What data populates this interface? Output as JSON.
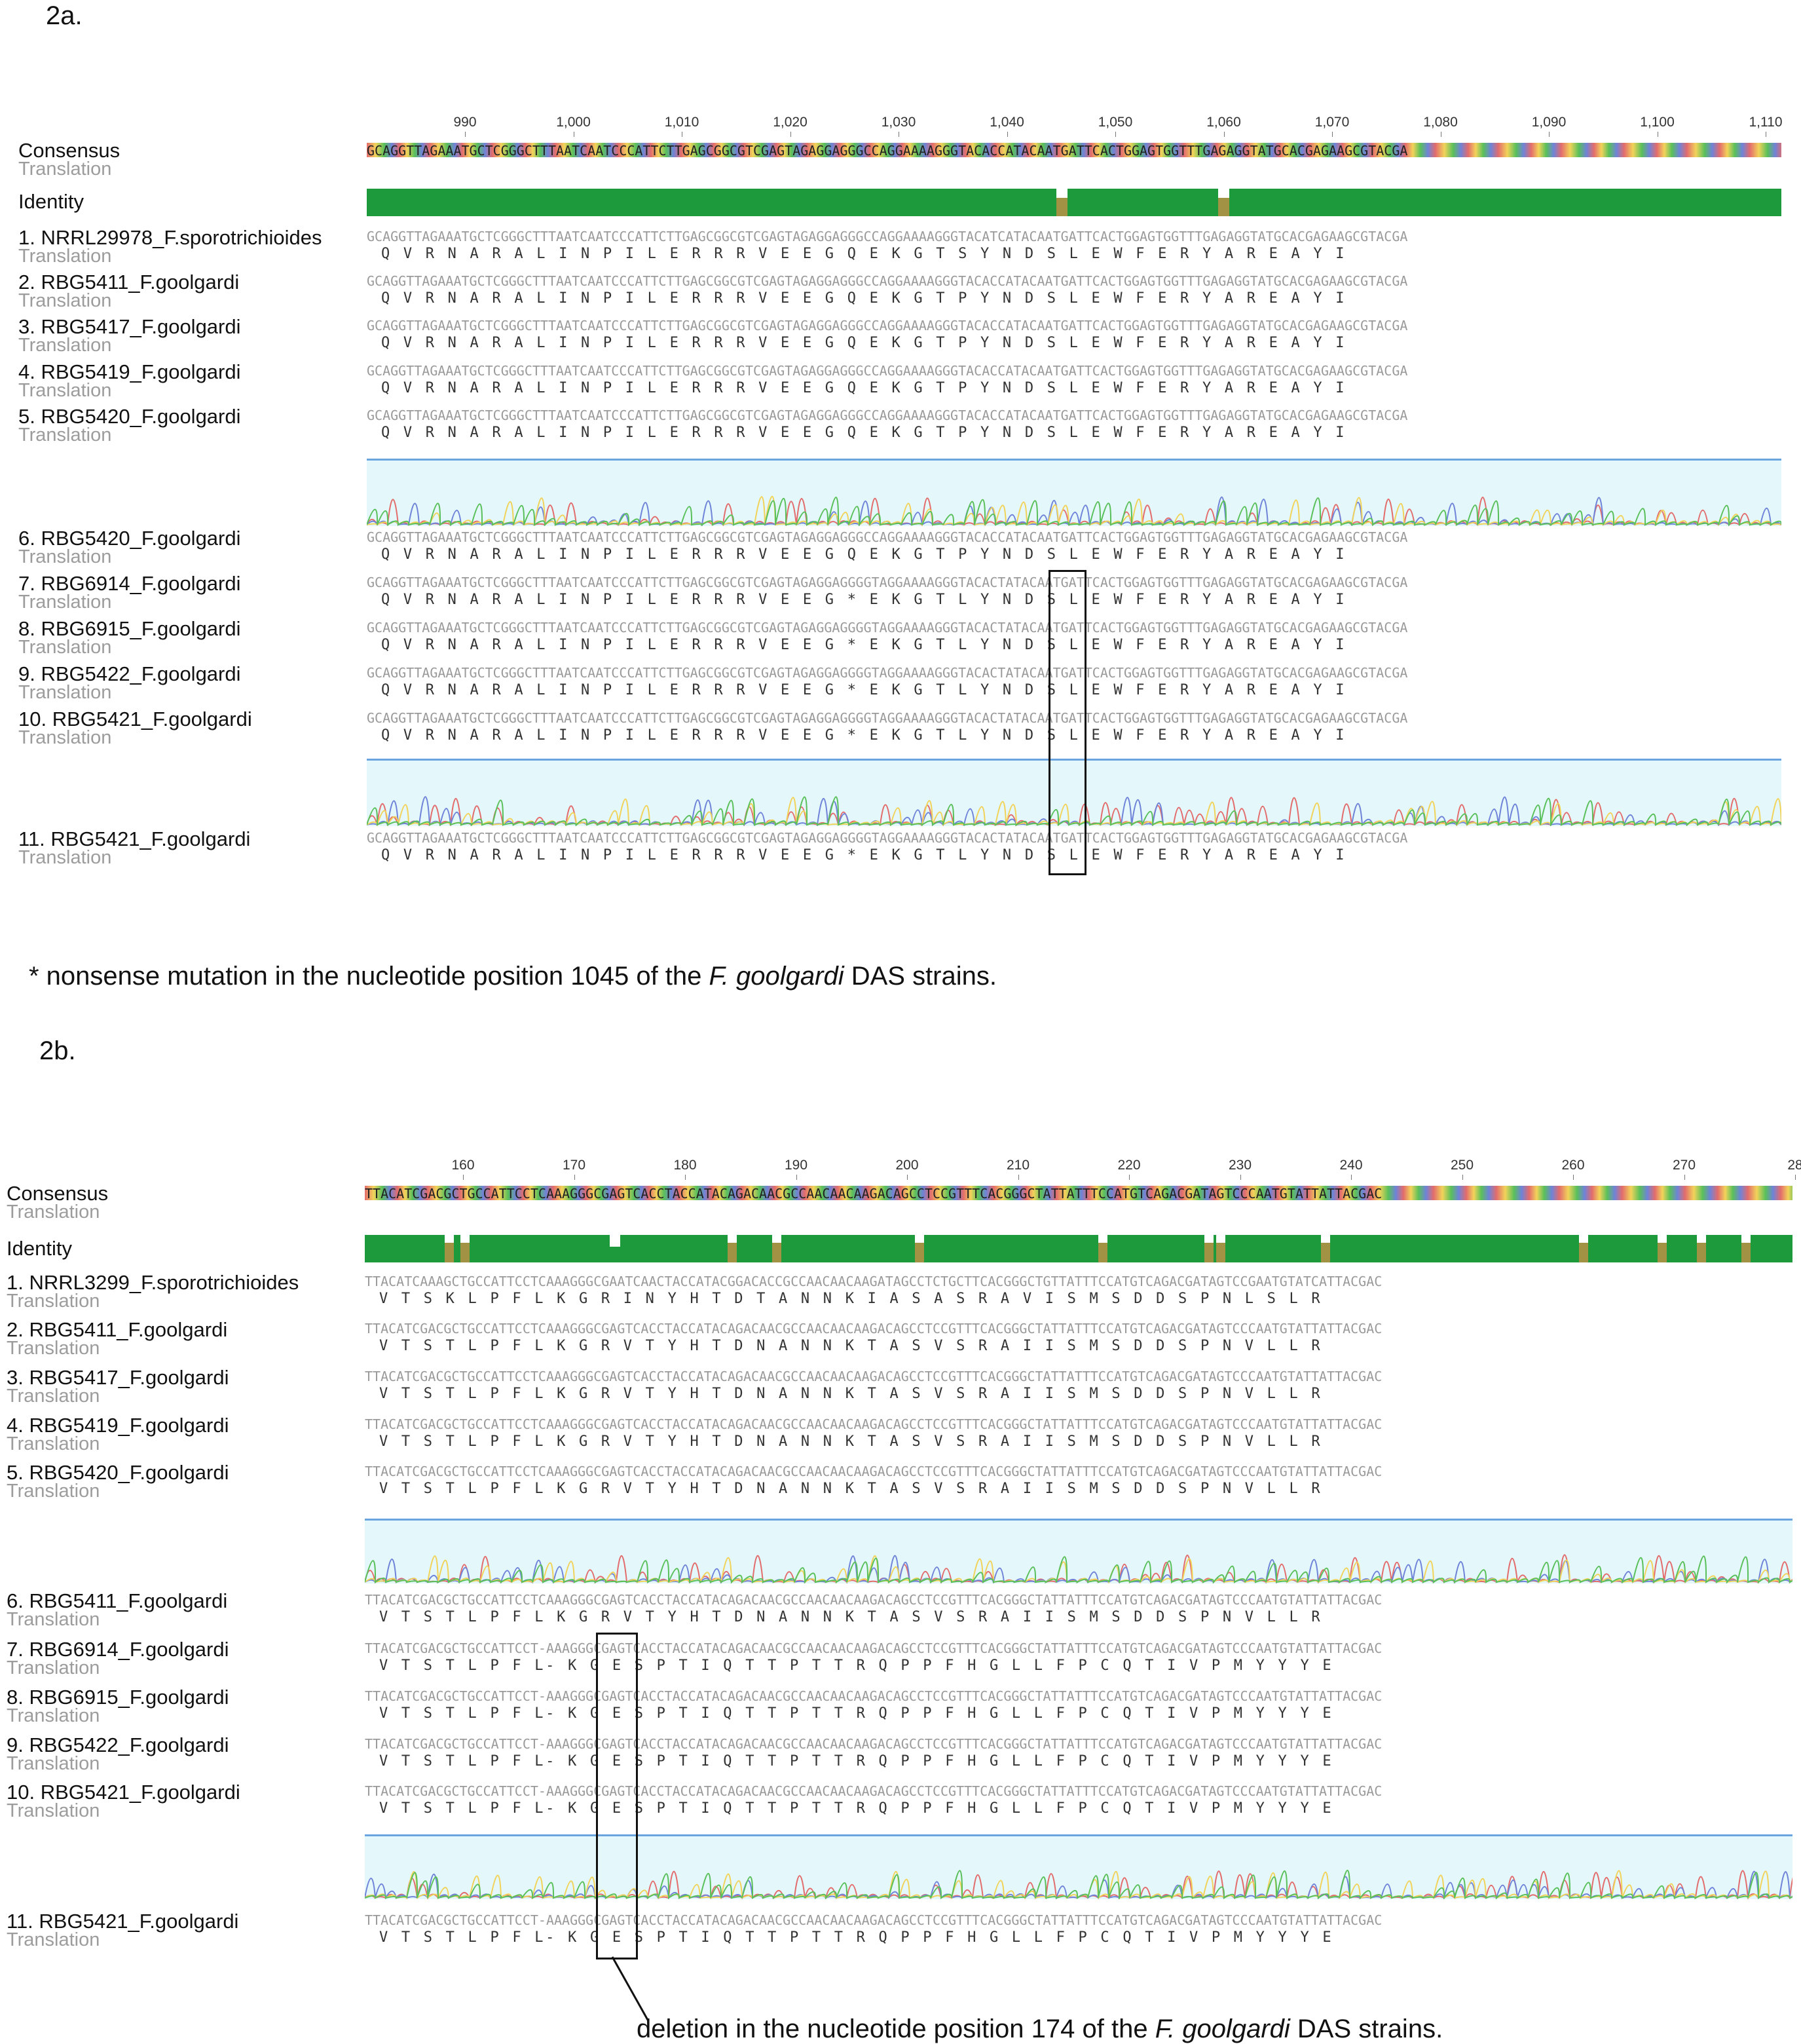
{
  "panels": {
    "a": {
      "label": "2a.",
      "consensus_label": "Consensus",
      "translation_label": "Translation",
      "identity_label": "Identity",
      "ruler_ticks": [
        "990",
        "1,000",
        "1,010",
        "1,020",
        "1,030",
        "1,040",
        "1,050",
        "1,060",
        "1,070",
        "1,080",
        "1,090",
        "1,100",
        "1,110"
      ],
      "consensus_seq": "GCAGGTTAGAAATGCTCGGGCTTTAATCAATCCCATTCTTGAGCGGCGTCGAGTAGAGGAGGGCCAGGAAAAGGGTACACCATACAATGATTCACTGGAGTGGTTTGAGAGGTATGCACGAGAAGCGTACGA",
      "rows": [
        {
          "name": "1. NRRL29978_F.sporotrichioides",
          "seq": "GCAGGTTAGAAATGCTCGGGCTTTAATCAATCCCATTCTTGAGCGGCGTCGAGTAGAGGAGGGCCAGGAAAAGGGTACATCATACAATGATTCACTGGAGTGGTTTGAGAGGTATGCACGAGAAGCGTACGA",
          "aa": "Q V R N A R A L I N P I L E R R R V E E G Q E K G T S Y N D S L E W F E R Y A R E A Y I"
        },
        {
          "name": "2. RBG5411_F.goolgardi",
          "seq": "GCAGGTTAGAAATGCTCGGGCTTTAATCAATCCCATTCTTGAGCGGCGTCGAGTAGAGGAGGGCCAGGAAAAGGGTACACCATACAATGATTCACTGGAGTGGTTTGAGAGGTATGCACGAGAAGCGTACGA",
          "aa": "Q V R N A R A L I N P I L E R R R V E E G Q E K G T P Y N D S L E W F E R Y A R E A Y I"
        },
        {
          "name": "3. RBG5417_F.goolgardi",
          "seq": "GCAGGTTAGAAATGCTCGGGCTTTAATCAATCCCATTCTTGAGCGGCGTCGAGTAGAGGAGGGCCAGGAAAAGGGTACACCATACAATGATTCACTGGAGTGGTTTGAGAGGTATGCACGAGAAGCGTACGA",
          "aa": "Q V R N A R A L I N P I L E R R R V E E G Q E K G T P Y N D S L E W F E R Y A R E A Y I"
        },
        {
          "name": "4. RBG5419_F.goolgardi",
          "seq": "GCAGGTTAGAAATGCTCGGGCTTTAATCAATCCCATTCTTGAGCGGCGTCGAGTAGAGGAGGGCCAGGAAAAGGGTACACCATACAATGATTCACTGGAGTGGTTTGAGAGGTATGCACGAGAAGCGTACGA",
          "aa": "Q V R N A R A L I N P I L E R R R V E E G Q E K G T P Y N D S L E W F E R Y A R E A Y I"
        },
        {
          "name": "5. RBG5420_F.goolgardi",
          "seq": "GCAGGTTAGAAATGCTCGGGCTTTAATCAATCCCATTCTTGAGCGGCGTCGAGTAGAGGAGGGCCAGGAAAAGGGTACACCATACAATGATTCACTGGAGTGGTTTGAGAGGTATGCACGAGAAGCGTACGA",
          "aa": "Q V R N A R A L I N P I L E R R R V E E G Q E K G T P Y N D S L E W F E R Y A R E A Y I"
        },
        {
          "name": "6. RBG5420_F.goolgardi",
          "seq": "GCAGGTTAGAAATGCTCGGGCTTTAATCAATCCCATTCTTGAGCGGCGTCGAGTAGAGGAGGGCCAGGAAAAGGGTACACCATACAATGATTCACTGGAGTGGTTTGAGAGGTATGCACGAGAAGCGTACGA",
          "aa": "Q V R N A R A L I N P I L E R R R V E E G Q E K G T P Y N D S L E W F E R Y A R E A Y I"
        },
        {
          "name": "7. RBG6914_F.goolgardi",
          "seq": "GCAGGTTAGAAATGCTCGGGCTTTAATCAATCCCATTCTTGAGCGGCGTCGAGTAGAGGAGGGGTAGGAAAAGGGTACACTATACAATGATTCACTGGAGTGGTTTGAGAGGTATGCACGAGAAGCGTACGA",
          "aa": "Q V R N A R A L I N P I L E R R R V E E G * E K G T L Y N D S L E W F E R Y A R E A Y I"
        },
        {
          "name": "8. RBG6915_F.goolgardi",
          "seq": "GCAGGTTAGAAATGCTCGGGCTTTAATCAATCCCATTCTTGAGCGGCGTCGAGTAGAGGAGGGGTAGGAAAAGGGTACACTATACAATGATTCACTGGAGTGGTTTGAGAGGTATGCACGAGAAGCGTACGA",
          "aa": "Q V R N A R A L I N P I L E R R R V E E G * E K G T L Y N D S L E W F E R Y A R E A Y I"
        },
        {
          "name": "9. RBG5422_F.goolgardi",
          "seq": "GCAGGTTAGAAATGCTCGGGCTTTAATCAATCCCATTCTTGAGCGGCGTCGAGTAGAGGAGGGGTAGGAAAAGGGTACACTATACAATGATTCACTGGAGTGGTTTGAGAGGTATGCACGAGAAGCGTACGA",
          "aa": "Q V R N A R A L I N P I L E R R R V E E G * E K G T L Y N D S L E W F E R Y A R E A Y I"
        },
        {
          "name": "10. RBG5421_F.goolgardi",
          "seq": "GCAGGTTAGAAATGCTCGGGCTTTAATCAATCCCATTCTTGAGCGGCGTCGAGTAGAGGAGGGGTAGGAAAAGGGTACACTATACAATGATTCACTGGAGTGGTTTGAGAGGTATGCACGAGAAGCGTACGA",
          "aa": "Q V R N A R A L I N P I L E R R R V E E G * E K G T L Y N D S L E W F E R Y A R E A Y I"
        },
        {
          "name": "11. RBG5421_F.goolgardi",
          "seq": "GCAGGTTAGAAATGCTCGGGCTTTAATCAATCCCATTCTTGAGCGGCGTCGAGTAGAGGAGGGGTAGGAAAAGGGTACACTATACAATGATTCACTGGAGTGGTTTGAGAGGTATGCACGAGAAGCGTACGA",
          "aa": "Q V R N A R A L I N P I L E R R R V E E G * E K G T L Y N D S L E W F E R Y A R E A Y I"
        }
      ],
      "note_prefix": "* nonsense mutation in the nucleotide position 1045 of the ",
      "note_species": "F. goolgardi",
      "note_suffix": " DAS strains."
    },
    "b": {
      "label": "2b.",
      "consensus_label": "Consensus",
      "translation_label": "Translation",
      "identity_label": "Identity",
      "ruler_ticks": [
        "160",
        "170",
        "180",
        "190",
        "200",
        "210",
        "220",
        "230",
        "240",
        "250",
        "260",
        "270",
        "28"
      ],
      "consensus_seq": "TTACATCGACGCTGCCATTCCTCAAAGGGCGAGTCACCTACCATACAGACAACGCCAACAACAAGACAGCCTCCGTTTCACGGGCTATTATTTCCATGTCAGACGATAGTCCCAATGTATTATTACGAC",
      "rows": [
        {
          "name": "1. NRRL3299_F.sporotrichioides",
          "seq": "TTACATCAAAGCTGCCATTCCTCAAAGGGCGAATCAACTACCATACGGACACCGCCAACAACAAGATAGCCTCTGCTTCACGGGCTGTTATTTCCATGTCAGACGATAGTCCGAATGTATCATTACGAC",
          "aa": "V T S K L P F L K G R I N Y H T D T A N N K I A S A S R A V I S M S D D S P N L S L R"
        },
        {
          "name": "2. RBG5411_F.goolgardi",
          "seq": "TTACATCGACGCTGCCATTCCTCAAAGGGCGAGTCACCTACCATACAGACAACGCCAACAACAAGACAGCCTCCGTTTCACGGGCTATTATTTCCATGTCAGACGATAGTCCCAATGTATTATTACGAC",
          "aa": "V T S T L P F L K G R V T Y H T D N A N N K T A S V S R A I I S M S D D S P N V L L R"
        },
        {
          "name": "3. RBG5417_F.goolgardi",
          "seq": "TTACATCGACGCTGCCATTCCTCAAAGGGCGAGTCACCTACCATACAGACAACGCCAACAACAAGACAGCCTCCGTTTCACGGGCTATTATTTCCATGTCAGACGATAGTCCCAATGTATTATTACGAC",
          "aa": "V T S T L P F L K G R V T Y H T D N A N N K T A S V S R A I I S M S D D S P N V L L R"
        },
        {
          "name": "4. RBG5419_F.goolgardi",
          "seq": "TTACATCGACGCTGCCATTCCTCAAAGGGCGAGTCACCTACCATACAGACAACGCCAACAACAAGACAGCCTCCGTTTCACGGGCTATTATTTCCATGTCAGACGATAGTCCCAATGTATTATTACGAC",
          "aa": "V T S T L P F L K G R V T Y H T D N A N N K T A S V S R A I I S M S D D S P N V L L R"
        },
        {
          "name": "5. RBG5420_F.goolgardi",
          "seq": "TTACATCGACGCTGCCATTCCTCAAAGGGCGAGTCACCTACCATACAGACAACGCCAACAACAAGACAGCCTCCGTTTCACGGGCTATTATTTCCATGTCAGACGATAGTCCCAATGTATTATTACGAC",
          "aa": "V T S T L P F L K G R V T Y H T D N A N N K T A S V S R A I I S M S D D S P N V L L R"
        },
        {
          "name": "6. RBG5411_F.goolgardi",
          "seq": "TTACATCGACGCTGCCATTCCTCAAAGGGCGAGTCACCTACCATACAGACAACGCCAACAACAAGACAGCCTCCGTTTCACGGGCTATTATTTCCATGTCAGACGATAGTCCCAATGTATTATTACGAC",
          "aa": "V T S T L P F L K G R V T Y H T D N A N N K T A S V S R A I I S M S D D S P N V L L R"
        },
        {
          "name": "7. RBG6914_F.goolgardi",
          "seq": "TTACATCGACGCTGCCATTCCT-AAAGGGCGAGTCACCTACCATACAGACAACGCCAACAACAAGACAGCCTCCGTTTCACGGGCTATTATTTCCATGTCAGACGATAGTCCCAATGTATTATTACGAC",
          "aa": "V T S T L P F L- K G E S P T I Q T T P T T R Q P P F H G L L F P C Q T I V P M Y Y Y E"
        },
        {
          "name": "8. RBG6915_F.goolgardi",
          "seq": "TTACATCGACGCTGCCATTCCT-AAAGGGCGAGTCACCTACCATACAGACAACGCCAACAACAAGACAGCCTCCGTTTCACGGGCTATTATTTCCATGTCAGACGATAGTCCCAATGTATTATTACGAC",
          "aa": "V T S T L P F L- K G E S P T I Q T T P T T R Q P P F H G L L F P C Q T I V P M Y Y Y E"
        },
        {
          "name": "9. RBG5422_F.goolgardi",
          "seq": "TTACATCGACGCTGCCATTCCT-AAAGGGCGAGTCACCTACCATACAGACAACGCCAACAACAAGACAGCCTCCGTTTCACGGGCTATTATTTCCATGTCAGACGATAGTCCCAATGTATTATTACGAC",
          "aa": "V T S T L P F L- K G E S P T I Q T T P T T R Q P P F H G L L F P C Q T I V P M Y Y Y E"
        },
        {
          "name": "10. RBG5421_F.goolgardi",
          "seq": "TTACATCGACGCTGCCATTCCT-AAAGGGCGAGTCACCTACCATACAGACAACGCCAACAACAAGACAGCCTCCGTTTCACGGGCTATTATTTCCATGTCAGACGATAGTCCCAATGTATTATTACGAC",
          "aa": "V T S T L P F L- K G E S P T I Q T T P T T R Q P P F H G L L F P C Q T I V P M Y Y Y E"
        },
        {
          "name": "11. RBG5421_F.goolgardi",
          "seq": "TTACATCGACGCTGCCATTCCT-AAAGGGCGAGTCACCTACCATACAGACAACGCCAACAACAAGACAGCCTCCGTTTCACGGGCTATTATTTCCATGTCAGACGATAGTCCCAATGTATTATTACGAC",
          "aa": "V T S T L P F L- K G E S P T I Q T T P T T R Q P P F H G L L F P C Q T I V P M Y Y Y E"
        }
      ],
      "note_prefix": "deletion in the nucleotide position 174 of the ",
      "note_species": "F. goolgardi",
      "note_suffix": " DAS strains."
    }
  },
  "colors": {
    "identity_green": "#1c9a3c",
    "identity_mismatch": "#a29244",
    "base_A": "#e36c6c",
    "base_C": "#6f83d9",
    "base_G": "#f2d35a",
    "base_T": "#59c05a",
    "trace_bg": "#e4f7fb",
    "trace_line": "#6aa5e0"
  }
}
